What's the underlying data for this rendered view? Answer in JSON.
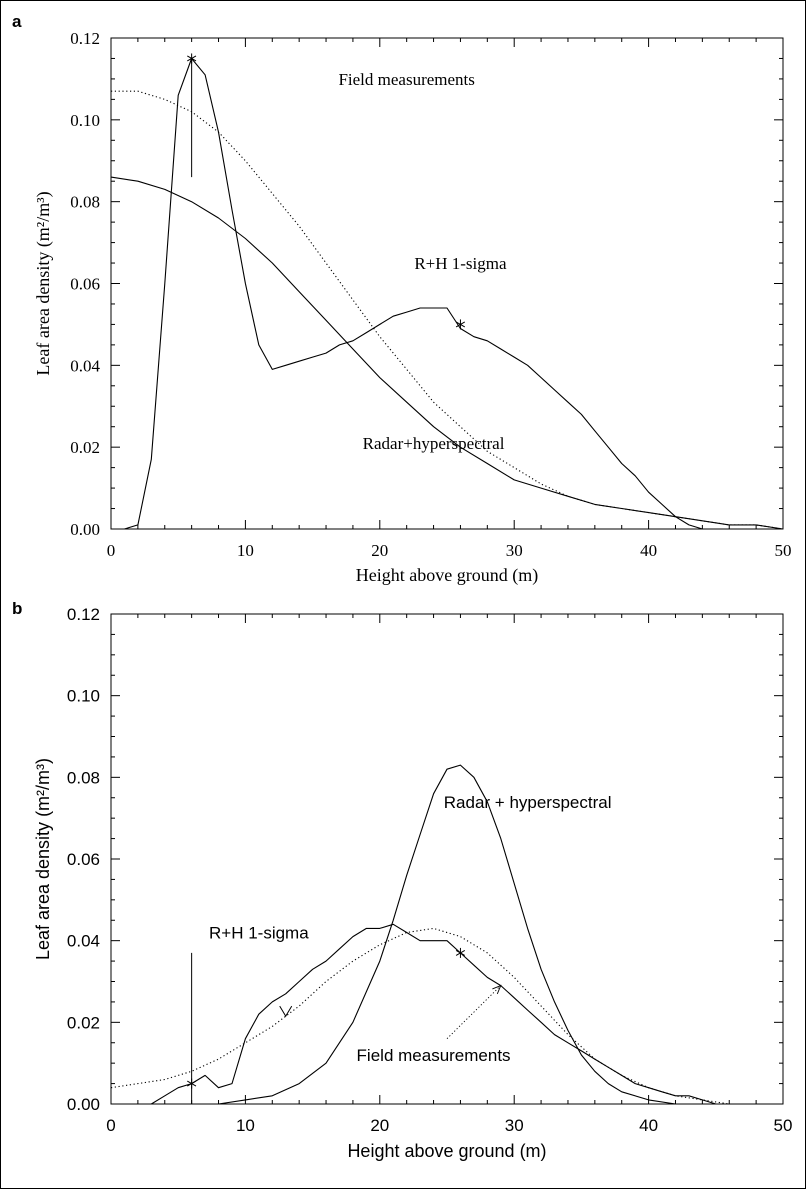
{
  "charts": [
    {
      "panel_label": "a",
      "chart_data": {
        "type": "line",
        "xlabel": "Height above ground (m)",
        "ylabel": "Leaf area density (m²/m³)",
        "xlim": [
          0,
          50
        ],
        "ylim": [
          0,
          0.12
        ],
        "xticks": [
          "0",
          "10",
          "20",
          "30",
          "40",
          "50"
        ],
        "yticks": [
          "0.00",
          "0.02",
          "0.04",
          "0.06",
          "0.08",
          "0.10",
          "0.12"
        ],
        "grid": false,
        "series": [
          {
            "name": "Field measurements",
            "style": "solid",
            "x": [
              1,
              2,
              3,
              4,
              5,
              6,
              7,
              8,
              9,
              10,
              11,
              12,
              13,
              14,
              15,
              16,
              17,
              18,
              19,
              20,
              21,
              22,
              23,
              24,
              25,
              26,
              27,
              28,
              29,
              30,
              31,
              32,
              33,
              34,
              35,
              36,
              37,
              38,
              39,
              40,
              41,
              42,
              43,
              44,
              45
            ],
            "y": [
              0.0,
              0.001,
              0.017,
              0.06,
              0.106,
              0.115,
              0.111,
              0.097,
              0.078,
              0.06,
              0.045,
              0.039,
              0.04,
              0.041,
              0.042,
              0.043,
              0.045,
              0.046,
              0.048,
              0.05,
              0.052,
              0.053,
              0.054,
              0.054,
              0.054,
              0.049,
              0.047,
              0.046,
              0.044,
              0.042,
              0.04,
              0.037,
              0.034,
              0.031,
              0.028,
              0.024,
              0.02,
              0.016,
              0.013,
              0.009,
              0.006,
              0.003,
              0.001,
              0.0,
              0.0
            ]
          },
          {
            "name": "R+H 1-sigma",
            "style": "dotted",
            "x": [
              0,
              2,
              4,
              6,
              8,
              10,
              12,
              14,
              16,
              18,
              20,
              22,
              24,
              26,
              28,
              30,
              32,
              34,
              36,
              38,
              40,
              42,
              44,
              46,
              48,
              50
            ],
            "y": [
              0.107,
              0.107,
              0.105,
              0.102,
              0.097,
              0.09,
              0.082,
              0.074,
              0.065,
              0.056,
              0.047,
              0.039,
              0.031,
              0.025,
              0.019,
              0.015,
              0.011,
              0.008,
              0.006,
              0.005,
              0.004,
              0.003,
              0.002,
              0.001,
              0.001,
              0.0
            ]
          },
          {
            "name": "Radar+hyperspectral",
            "style": "solid",
            "x": [
              0,
              2,
              4,
              6,
              8,
              10,
              12,
              14,
              16,
              18,
              20,
              22,
              24,
              26,
              28,
              30,
              32,
              34,
              36,
              38,
              40,
              42,
              44,
              46,
              48,
              50
            ],
            "y": [
              0.086,
              0.085,
              0.083,
              0.08,
              0.076,
              0.071,
              0.065,
              0.058,
              0.051,
              0.044,
              0.037,
              0.031,
              0.025,
              0.02,
              0.016,
              0.012,
              0.01,
              0.008,
              0.006,
              0.005,
              0.004,
              0.003,
              0.002,
              0.001,
              0.001,
              0.0
            ]
          }
        ],
        "markers": [
          {
            "x": 6,
            "y": 0.115,
            "symbol": "asterisk"
          },
          {
            "x": 26,
            "y": 0.05,
            "symbol": "asterisk"
          }
        ],
        "error_bars": [
          {
            "x": 6,
            "y_low": 0.086,
            "y_high": 0.115
          }
        ],
        "annotations": [
          {
            "text": "Field measurements",
            "x": 22,
            "y": 0.11
          },
          {
            "text": "R+H 1-sigma",
            "x": 26,
            "y": 0.065
          },
          {
            "text": "Radar+hyperspectral",
            "x": 24,
            "y": 0.021
          }
        ]
      }
    },
    {
      "panel_label": "b",
      "chart_data": {
        "type": "line",
        "xlabel": "Height above ground (m)",
        "ylabel": "Leaf area density (m²/m³)",
        "xlim": [
          0,
          50
        ],
        "ylim": [
          0,
          0.12
        ],
        "xticks": [
          "0",
          "10",
          "20",
          "30",
          "40",
          "50"
        ],
        "yticks": [
          "0.00",
          "0.02",
          "0.04",
          "0.06",
          "0.08",
          "0.10",
          "0.12"
        ],
        "grid": false,
        "series": [
          {
            "name": "Field measurements",
            "style": "solid",
            "x": [
              3,
              4,
              5,
              6,
              7,
              8,
              9,
              10,
              11,
              12,
              13,
              14,
              15,
              16,
              17,
              18,
              19,
              20,
              21,
              22,
              23,
              24,
              25,
              26,
              27,
              28,
              29,
              30,
              31,
              32,
              33,
              34,
              35,
              36,
              37,
              38,
              39,
              40,
              41,
              42,
              43,
              44,
              45,
              46,
              47,
              48,
              49
            ],
            "y": [
              0.0,
              0.002,
              0.004,
              0.005,
              0.007,
              0.004,
              0.005,
              0.016,
              0.022,
              0.025,
              0.027,
              0.03,
              0.033,
              0.035,
              0.038,
              0.041,
              0.043,
              0.043,
              0.044,
              0.042,
              0.04,
              0.04,
              0.04,
              0.037,
              0.034,
              0.031,
              0.029,
              0.026,
              0.023,
              0.02,
              0.017,
              0.015,
              0.013,
              0.011,
              0.009,
              0.007,
              0.005,
              0.004,
              0.003,
              0.002,
              0.002,
              0.001,
              0.0,
              0.0,
              0.0,
              0.0,
              0.0
            ]
          },
          {
            "name": "R+H 1-sigma",
            "style": "dotted",
            "x": [
              0,
              2,
              4,
              6,
              8,
              10,
              12,
              14,
              16,
              18,
              20,
              22,
              24,
              26,
              28,
              30,
              32,
              34,
              36,
              38,
              40,
              42,
              44,
              46,
              48,
              50
            ],
            "y": [
              0.004,
              0.005,
              0.006,
              0.008,
              0.011,
              0.015,
              0.019,
              0.024,
              0.03,
              0.035,
              0.039,
              0.042,
              0.043,
              0.041,
              0.037,
              0.031,
              0.024,
              0.017,
              0.011,
              0.007,
              0.004,
              0.002,
              0.001,
              0.0,
              0.0,
              0.0
            ]
          },
          {
            "name": "Radar + hyperspectral",
            "style": "solid",
            "x": [
              4,
              6,
              8,
              10,
              12,
              14,
              16,
              18,
              20,
              21,
              22,
              23,
              24,
              25,
              26,
              27,
              28,
              29,
              30,
              31,
              32,
              33,
              34,
              35,
              36,
              37,
              38,
              40,
              42,
              44,
              46,
              48
            ],
            "y": [
              0.0,
              0.0,
              0.0,
              0.001,
              0.002,
              0.005,
              0.01,
              0.02,
              0.035,
              0.045,
              0.056,
              0.066,
              0.076,
              0.082,
              0.083,
              0.08,
              0.074,
              0.065,
              0.054,
              0.043,
              0.033,
              0.025,
              0.018,
              0.012,
              0.008,
              0.005,
              0.003,
              0.001,
              0.0,
              0.0,
              0.0,
              0.0
            ]
          }
        ],
        "markers": [
          {
            "x": 6,
            "y": 0.005,
            "symbol": "asterisk"
          },
          {
            "x": 26,
            "y": 0.037,
            "symbol": "asterisk"
          }
        ],
        "error_bars": [
          {
            "x": 6,
            "y_low": 0.0,
            "y_high": 0.037
          }
        ],
        "annotations": [
          {
            "text": "Radar + hyperspectral",
            "x": 31,
            "y": 0.074
          },
          {
            "text": "R+H 1-sigma",
            "x": 11,
            "y": 0.042
          },
          {
            "text": "Field measurements",
            "x": 24,
            "y": 0.012
          }
        ],
        "arrow": {
          "from": [
            25,
            0.016
          ],
          "to": [
            29,
            0.029
          ]
        },
        "chevron": {
          "x": 13,
          "y": 0.022
        }
      }
    }
  ]
}
